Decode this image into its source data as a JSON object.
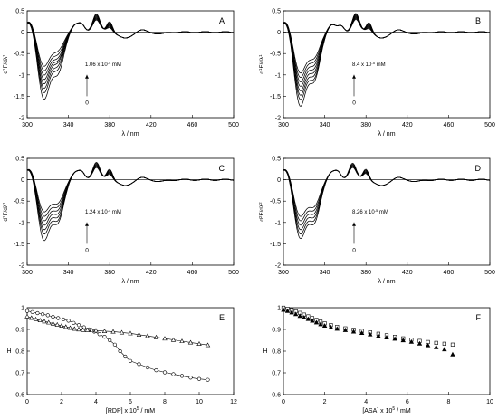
{
  "chart_data": [
    {
      "type": "line",
      "panel": "A",
      "xlabel": "λ / nm",
      "ylabel": "d1F/dλ1",
      "xlim": [
        300,
        500
      ],
      "ylim": [
        -2,
        0.5
      ],
      "xticks": [
        300,
        340,
        380,
        420,
        460,
        500
      ],
      "yticks": [
        0.5,
        0,
        -0.5,
        -1,
        -1.5,
        -2
      ],
      "annotation": "1.06 x 10-4 mM",
      "annotation_base": "1.06 x 10",
      "annotation_exp": "-4",
      "annotation_unit": "mM",
      "arrow_low_label": "0",
      "curve_mins_1": [
        -0.8,
        -0.9,
        -1.0,
        -1.1,
        -1.2,
        -1.3,
        -1.4,
        -1.55
      ],
      "curve_mins_2": [
        -0.6,
        -0.7,
        -0.8,
        -0.88,
        -0.95,
        -1.05,
        -1.15,
        -1.3
      ],
      "peak_nm": 367
    },
    {
      "type": "line",
      "panel": "B",
      "xlabel": "λ / nm",
      "ylabel": "d1F/dλ1",
      "xlim": [
        300,
        500
      ],
      "ylim": [
        -2,
        0.5
      ],
      "xticks": [
        300,
        340,
        380,
        420,
        460,
        500
      ],
      "yticks": [
        0.5,
        0,
        -0.5,
        -1,
        -1.5,
        -2
      ],
      "annotation": "8.4 x 10-5 mM",
      "annotation_base": "8.4 x 10",
      "annotation_exp": "-5",
      "annotation_unit": "mM",
      "arrow_low_label": "0",
      "curve_mins_1": [
        -0.95,
        -1.05,
        -1.15,
        -1.25,
        -1.35,
        -1.45,
        -1.55,
        -1.7
      ],
      "curve_mins_2": [
        -0.8,
        -0.9,
        -1.0,
        -1.1,
        -1.2,
        -1.3,
        -1.4,
        -1.5
      ],
      "peak_nm": 370
    },
    {
      "type": "line",
      "panel": "C",
      "xlabel": "λ / nm",
      "ylabel": "d1F/dλ1",
      "xlim": [
        300,
        500
      ],
      "ylim": [
        -2,
        0.5
      ],
      "xticks": [
        300,
        340,
        380,
        420,
        460,
        500
      ],
      "yticks": [
        0.5,
        0,
        -0.5,
        -1,
        -1.5,
        -2
      ],
      "annotation": "1.24 x 10-4 mM",
      "annotation_base": "1.24 x 10",
      "annotation_exp": "-4",
      "annotation_unit": "mM",
      "arrow_low_label": "0",
      "curve_mins_1": [
        -0.75,
        -0.85,
        -0.95,
        -1.05,
        -1.15,
        -1.25,
        -1.4
      ],
      "curve_mins_2": [
        -0.7,
        -0.8,
        -0.9,
        -1.0,
        -1.1,
        -1.2,
        -1.3
      ],
      "peak_nm": 367
    },
    {
      "type": "line",
      "panel": "D",
      "xlabel": "λ / nm",
      "ylabel": "d2F/dλ2",
      "xlim": [
        300,
        500
      ],
      "ylim": [
        -2,
        0.5
      ],
      "xticks": [
        300,
        340,
        380,
        420,
        460,
        500
      ],
      "yticks": [
        0.5,
        0,
        -0.5,
        -1,
        -1.5,
        -2
      ],
      "annotation": "8.26 x 10-5 mM",
      "annotation_base": "8.26 x 10",
      "annotation_exp": "-5",
      "annotation_unit": "mM",
      "arrow_low_label": "0",
      "curve_mins_1": [
        -0.85,
        -0.95,
        -1.05,
        -1.15,
        -1.25,
        -1.35
      ],
      "curve_mins_2": [
        -0.8,
        -0.9,
        -1.0,
        -1.1,
        -1.2,
        -1.3
      ],
      "peak_nm": 367
    },
    {
      "type": "scatter",
      "panel": "E",
      "xlabel": "[RDP] x 105 / mM",
      "xlabel_pre": "[RDP] x 10",
      "xlabel_exp": "5",
      "xlabel_post": " / mM",
      "ylabel": "H",
      "xlim": [
        0,
        12
      ],
      "ylim": [
        0.6,
        1.0
      ],
      "xticks": [
        0,
        2,
        4,
        6,
        8,
        10,
        12
      ],
      "yticks": [
        1,
        0.9,
        0.8,
        0.7,
        0.6
      ],
      "series": [
        {
          "marker": "circle",
          "x": [
            0,
            0.3,
            0.6,
            0.9,
            1.2,
            1.5,
            1.8,
            2.1,
            2.4,
            2.7,
            3.0,
            3.3,
            3.6,
            3.9,
            4.2,
            4.5,
            4.8,
            5.1,
            5.4,
            5.7,
            6.0,
            6.5,
            7.0,
            7.5,
            8.0,
            8.5,
            9.0,
            9.5,
            10.0,
            10.5
          ],
          "y": [
            0.985,
            0.98,
            0.975,
            0.97,
            0.965,
            0.958,
            0.952,
            0.946,
            0.94,
            0.93,
            0.92,
            0.91,
            0.9,
            0.89,
            0.878,
            0.866,
            0.85,
            0.83,
            0.8,
            0.775,
            0.755,
            0.74,
            0.725,
            0.712,
            0.702,
            0.694,
            0.686,
            0.678,
            0.672,
            0.668
          ]
        },
        {
          "marker": "triangle-open",
          "x": [
            0,
            0.25,
            0.5,
            0.75,
            1.0,
            1.25,
            1.5,
            1.75,
            2.0,
            2.25,
            2.5,
            2.75,
            3.0,
            3.25,
            3.5,
            3.75,
            4.0,
            4.5,
            5.0,
            5.5,
            6.0,
            6.5,
            7.0,
            7.5,
            8.0,
            8.5,
            9.0,
            9.5,
            10.0,
            10.5
          ],
          "y": [
            0.96,
            0.953,
            0.947,
            0.942,
            0.937,
            0.932,
            0.927,
            0.922,
            0.917,
            0.912,
            0.907,
            0.903,
            0.9,
            0.898,
            0.897,
            0.896,
            0.895,
            0.892,
            0.89,
            0.886,
            0.882,
            0.876,
            0.87,
            0.864,
            0.858,
            0.852,
            0.846,
            0.84,
            0.834,
            0.828
          ]
        }
      ]
    },
    {
      "type": "scatter",
      "panel": "F",
      "xlabel": "[ASA] x 105 / mM",
      "xlabel_pre": "[ASA] x 10",
      "xlabel_exp": "5",
      "xlabel_post": " / mM",
      "ylabel": "H",
      "xlim": [
        0,
        10
      ],
      "ylim": [
        0.6,
        1.0
      ],
      "xticks": [
        0,
        2,
        4,
        6,
        8,
        10
      ],
      "yticks": [
        1,
        0.9,
        0.8,
        0.7,
        0.6
      ],
      "series": [
        {
          "marker": "square-open",
          "x": [
            0,
            0.2,
            0.4,
            0.6,
            0.8,
            1.0,
            1.2,
            1.4,
            1.6,
            1.8,
            2.0,
            2.3,
            2.6,
            3.0,
            3.4,
            3.8,
            4.2,
            4.6,
            5.0,
            5.4,
            5.8,
            6.2,
            6.6,
            7.0,
            7.4,
            7.8,
            8.2
          ],
          "y": [
            1.0,
            0.995,
            0.99,
            0.983,
            0.976,
            0.968,
            0.96,
            0.952,
            0.944,
            0.936,
            0.928,
            0.92,
            0.912,
            0.905,
            0.899,
            0.893,
            0.887,
            0.88,
            0.873,
            0.866,
            0.859,
            0.853,
            0.847,
            0.842,
            0.838,
            0.834,
            0.83
          ]
        },
        {
          "marker": "triangle-filled",
          "x": [
            0,
            0.2,
            0.4,
            0.6,
            0.8,
            1.0,
            1.2,
            1.4,
            1.6,
            1.8,
            2.0,
            2.3,
            2.6,
            3.0,
            3.4,
            3.8,
            4.2,
            4.6,
            5.0,
            5.4,
            5.8,
            6.2,
            6.6,
            7.0,
            7.4,
            7.8,
            8.2
          ],
          "y": [
            0.99,
            0.985,
            0.978,
            0.97,
            0.962,
            0.955,
            0.948,
            0.94,
            0.932,
            0.924,
            0.917,
            0.91,
            0.903,
            0.897,
            0.89,
            0.884,
            0.877,
            0.87,
            0.863,
            0.857,
            0.85,
            0.843,
            0.835,
            0.827,
            0.818,
            0.808,
            0.785
          ]
        }
      ]
    }
  ]
}
